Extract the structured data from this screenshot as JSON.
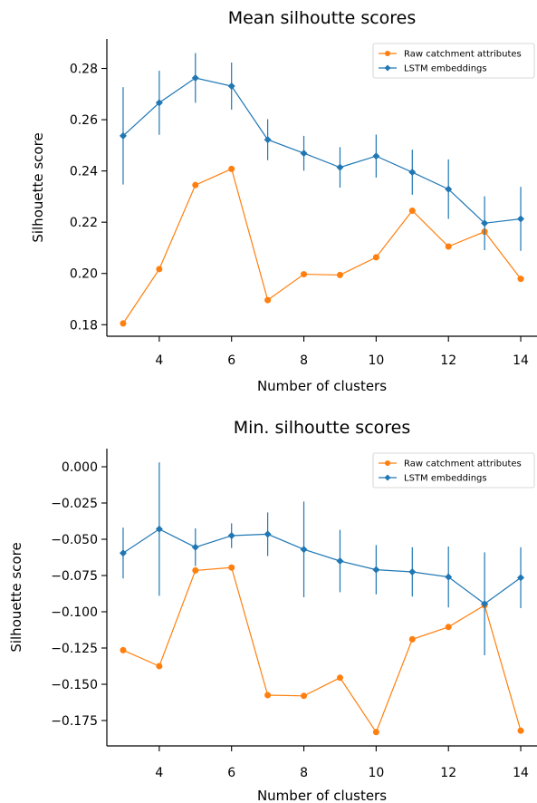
{
  "chart_data": [
    {
      "type": "line",
      "title": "Mean silhoutte scores",
      "xlabel": "Number of clusters",
      "ylabel": "Silhouette score",
      "xlim": [
        2.55,
        14.45
      ],
      "ylim": [
        0.1755,
        0.2915
      ],
      "xticks": [
        4,
        6,
        8,
        10,
        12,
        14
      ],
      "yticks": [
        0.18,
        0.2,
        0.22,
        0.24,
        0.26,
        0.28
      ],
      "ytick_labels": [
        "0.18",
        "0.20",
        "0.22",
        "0.24",
        "0.26",
        "0.28"
      ],
      "legend_position": "top-right",
      "grid": false,
      "series": [
        {
          "name": "Raw catchment attributes",
          "color": "#ff7f0e",
          "marker": "circle",
          "x": [
            3,
            4,
            5,
            6,
            7,
            8,
            9,
            10,
            11,
            12,
            13,
            14
          ],
          "y": [
            0.1805,
            0.2017,
            0.2345,
            0.2408,
            0.1896,
            0.1997,
            0.1994,
            0.2063,
            0.2245,
            0.2105,
            0.2163,
            0.1979
          ]
        },
        {
          "name": "LSTM embeddings",
          "color": "#1f77b4",
          "marker": "diamond",
          "x": [
            3,
            4,
            5,
            6,
            7,
            8,
            9,
            10,
            11,
            12,
            13,
            14
          ],
          "y": [
            0.2537,
            0.2666,
            0.2763,
            0.2731,
            0.2522,
            0.2469,
            0.2414,
            0.2458,
            0.2395,
            0.2329,
            0.2196,
            0.2213
          ],
          "yerr": [
            0.019,
            0.0125,
            0.0097,
            0.0092,
            0.008,
            0.0068,
            0.0079,
            0.0084,
            0.0088,
            0.0116,
            0.0105,
            0.0125
          ]
        }
      ]
    },
    {
      "type": "line",
      "title": "Min. silhoutte scores",
      "xlabel": "Number of clusters",
      "ylabel": "Silhouette score",
      "xlim": [
        2.55,
        14.45
      ],
      "ylim": [
        -0.1925,
        0.0125
      ],
      "xticks": [
        4,
        6,
        8,
        10,
        12,
        14
      ],
      "yticks": [
        0.0,
        -0.025,
        -0.05,
        -0.075,
        -0.1,
        -0.125,
        -0.15,
        -0.175
      ],
      "ytick_labels": [
        "0.000",
        "−0.025",
        "−0.050",
        "−0.075",
        "−0.100",
        "−0.125",
        "−0.150",
        "−0.175"
      ],
      "legend_position": "top-right",
      "grid": false,
      "series": [
        {
          "name": "Raw catchment attributes",
          "color": "#ff7f0e",
          "marker": "circle",
          "x": [
            3,
            4,
            5,
            6,
            7,
            8,
            9,
            10,
            11,
            12,
            13,
            14
          ],
          "y": [
            -0.1265,
            -0.1375,
            -0.0715,
            -0.0695,
            -0.1575,
            -0.158,
            -0.1455,
            -0.183,
            -0.119,
            -0.1105,
            -0.0955,
            -0.182
          ]
        },
        {
          "name": "LSTM embeddings",
          "color": "#1f77b4",
          "marker": "diamond",
          "x": [
            3,
            4,
            5,
            6,
            7,
            8,
            9,
            10,
            11,
            12,
            13,
            14
          ],
          "y": [
            -0.0595,
            -0.043,
            -0.0555,
            -0.0475,
            -0.0465,
            -0.057,
            -0.065,
            -0.071,
            -0.0725,
            -0.076,
            -0.0945,
            -0.0765
          ],
          "yerr": [
            0.0175,
            0.046,
            0.013,
            0.0085,
            0.015,
            0.033,
            0.0215,
            0.017,
            0.017,
            0.021,
            0.0355,
            0.021
          ]
        }
      ]
    }
  ]
}
